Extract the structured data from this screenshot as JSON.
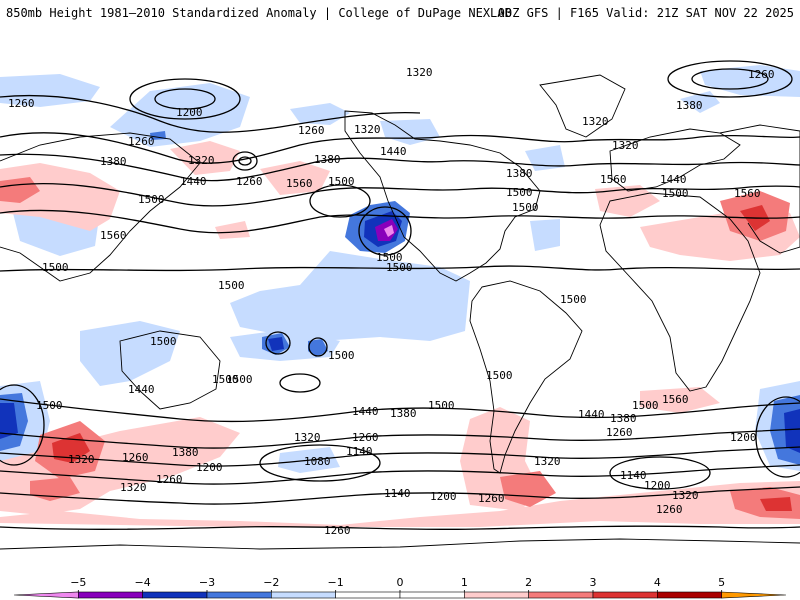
{
  "header": {
    "left_title": "850mb Height 1981–2010 Standardized Anomaly | College of DuPage NEXLAB",
    "right_title": "00Z GFS | F165 Valid: 21Z SAT NOV 22 2025"
  },
  "colors": {
    "neg5": "#ee88ee",
    "neg4": "#8800bb",
    "neg3": "#1133bb",
    "neg2": "#4477dd",
    "neg1": "#c6dcff",
    "zero": "#ffffff",
    "pos1": "#ffcccc",
    "pos2": "#f47b7b",
    "pos3": "#dd3333",
    "pos4": "#aa0000",
    "pos5": "#ff9900",
    "contour": "#000000",
    "coast": "#000000"
  },
  "colorbar": {
    "ticks": [
      "−5",
      "−4",
      "−3",
      "−2",
      "−1",
      "0",
      "1",
      "2",
      "3",
      "4",
      "5"
    ],
    "min": -6,
    "max": 6
  },
  "contour_labels": [
    {
      "text": "1320"
    },
    {
      "text": "1260"
    },
    {
      "text": "1260"
    },
    {
      "text": "1200"
    },
    {
      "text": "1380"
    },
    {
      "text": "1260"
    },
    {
      "text": "1320"
    },
    {
      "text": "1380"
    },
    {
      "text": "1440"
    },
    {
      "text": "1260"
    },
    {
      "text": "1260"
    },
    {
      "text": "1320"
    },
    {
      "text": "1440"
    },
    {
      "text": "1380"
    },
    {
      "text": "1500"
    },
    {
      "text": "1500"
    },
    {
      "text": "1560"
    },
    {
      "text": "1560"
    },
    {
      "text": "1500"
    },
    {
      "text": "1320"
    },
    {
      "text": "1320"
    },
    {
      "text": "1380"
    },
    {
      "text": "1500"
    },
    {
      "text": "1560"
    },
    {
      "text": "1440"
    },
    {
      "text": "1500"
    },
    {
      "text": "1560"
    },
    {
      "text": "1500"
    },
    {
      "text": "1500"
    },
    {
      "text": "1500"
    },
    {
      "text": "1500"
    },
    {
      "text": "1500"
    },
    {
      "text": "1500"
    },
    {
      "text": "1500"
    },
    {
      "text": "1500"
    },
    {
      "text": "1500"
    },
    {
      "text": "1440"
    },
    {
      "text": "1500"
    },
    {
      "text": "1500"
    },
    {
      "text": "1500"
    },
    {
      "text": "1560"
    },
    {
      "text": "1500"
    },
    {
      "text": "1320"
    },
    {
      "text": "1260"
    },
    {
      "text": "1380"
    },
    {
      "text": "1200"
    },
    {
      "text": "1260"
    },
    {
      "text": "1320"
    },
    {
      "text": "1440"
    },
    {
      "text": "1380"
    },
    {
      "text": "1320"
    },
    {
      "text": "1260"
    },
    {
      "text": "1140"
    },
    {
      "text": "1080"
    },
    {
      "text": "1140"
    },
    {
      "text": "1200"
    },
    {
      "text": "1260"
    },
    {
      "text": "1440"
    },
    {
      "text": "1380"
    },
    {
      "text": "1260"
    },
    {
      "text": "1200"
    },
    {
      "text": "1140"
    },
    {
      "text": "1320"
    },
    {
      "text": "1200"
    },
    {
      "text": "1320"
    },
    {
      "text": "1260"
    },
    {
      "text": "1260"
    }
  ]
}
